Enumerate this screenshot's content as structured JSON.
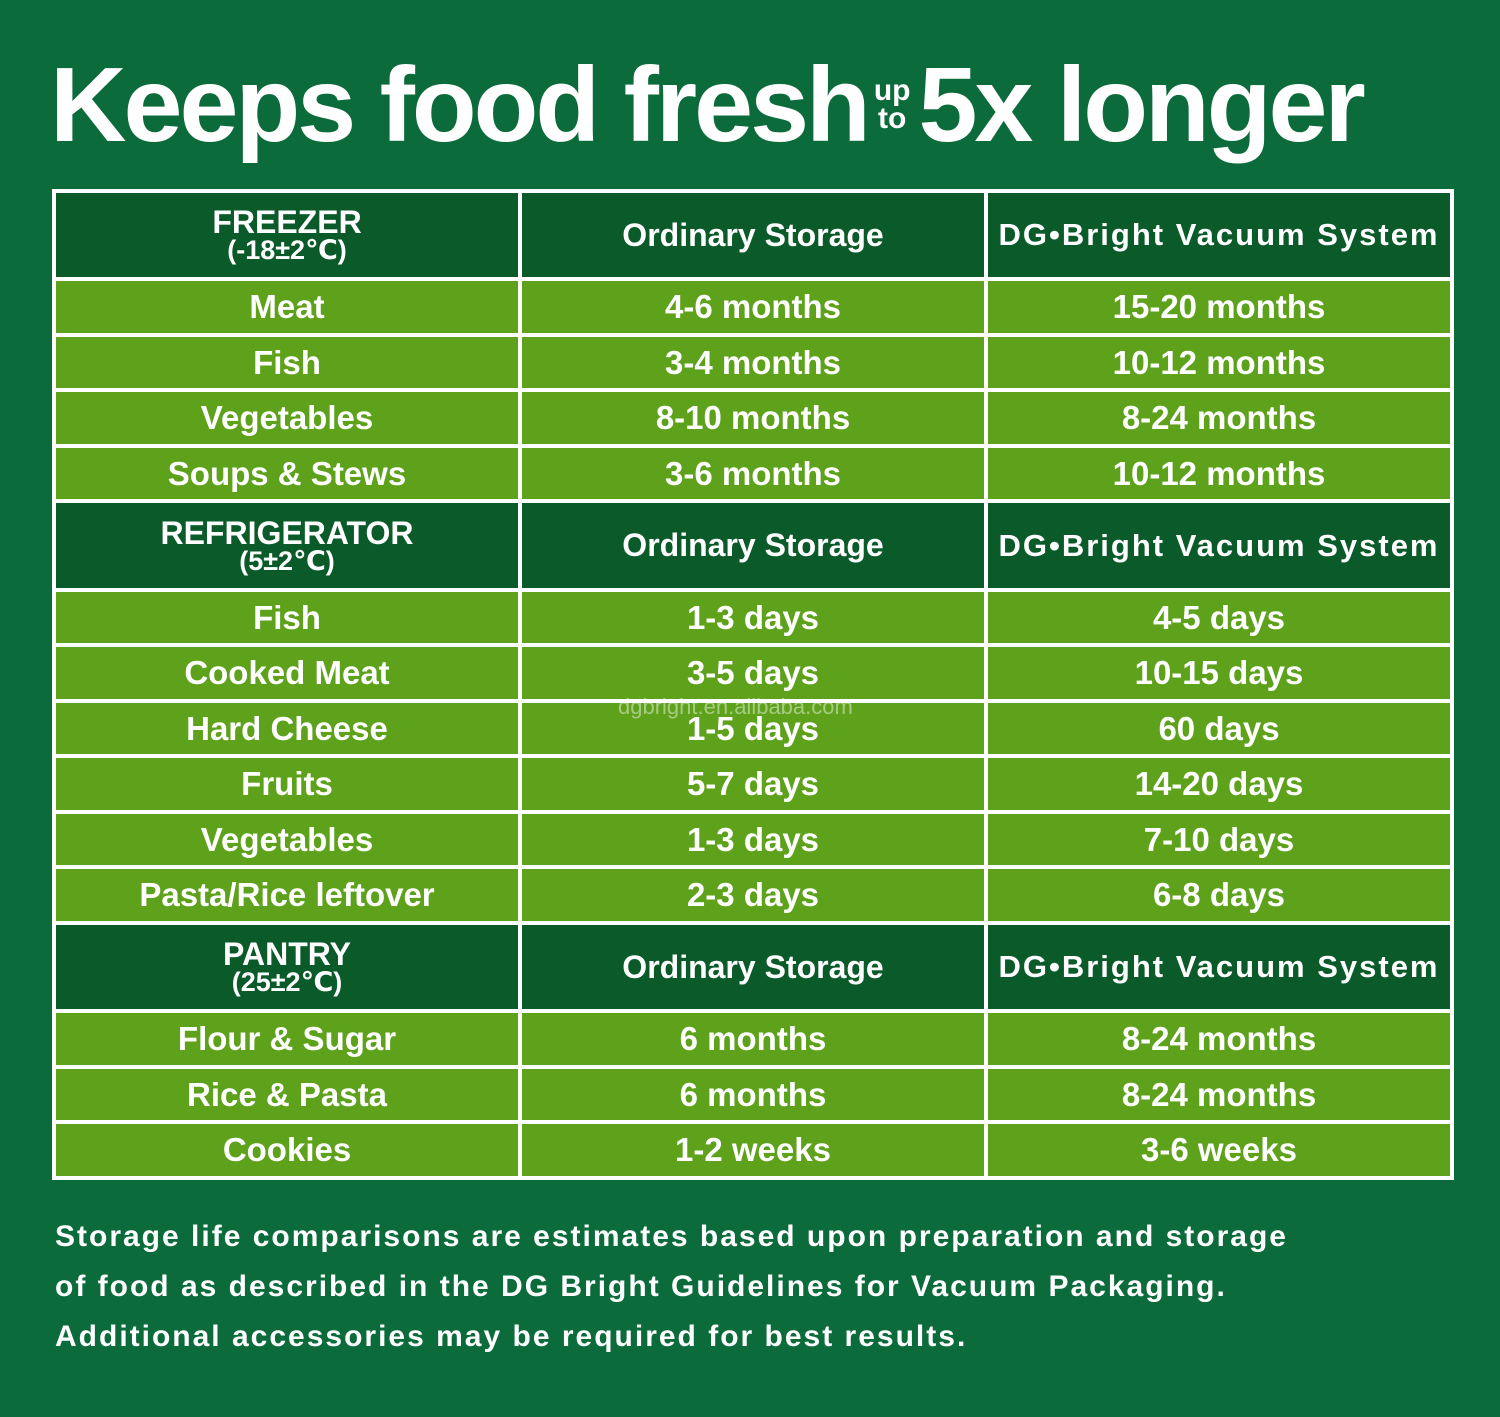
{
  "headline": {
    "main": "Keeps food fresh",
    "up": "up",
    "to": "to",
    "emphasis": "5x longer"
  },
  "columns": {
    "ordinary": "Ordinary Storage",
    "vacuum": "DG•Bright Vacuum System"
  },
  "sections": [
    {
      "name": "FREEZER",
      "temp": "(-18±2℃)",
      "rows": [
        {
          "food": "Meat",
          "ordinary": "4-6 months",
          "vacuum": "15-20 months"
        },
        {
          "food": "Fish",
          "ordinary": "3-4 months",
          "vacuum": "10-12 months"
        },
        {
          "food": "Vegetables",
          "ordinary": "8-10 months",
          "vacuum": "8-24 months"
        },
        {
          "food": "Soups & Stews",
          "ordinary": "3-6 months",
          "vacuum": "10-12 months"
        }
      ]
    },
    {
      "name": "REFRIGERATOR",
      "temp": "(5±2℃)",
      "rows": [
        {
          "food": "Fish",
          "ordinary": "1-3 days",
          "vacuum": "4-5 days"
        },
        {
          "food": "Cooked Meat",
          "ordinary": "3-5 days",
          "vacuum": "10-15 days"
        },
        {
          "food": "Hard Cheese",
          "ordinary": "1-5 days",
          "vacuum": "60 days"
        },
        {
          "food": "Fruits",
          "ordinary": "5-7 days",
          "vacuum": "14-20 days"
        },
        {
          "food": "Vegetables",
          "ordinary": "1-3 days",
          "vacuum": "7-10 days"
        },
        {
          "food": "Pasta/Rice leftover",
          "ordinary": "2-3 days",
          "vacuum": "6-8 days"
        }
      ]
    },
    {
      "name": "PANTRY",
      "temp": "(25±2℃)",
      "rows": [
        {
          "food": "Flour & Sugar",
          "ordinary": "6 months",
          "vacuum": "8-24 months"
        },
        {
          "food": "Rice & Pasta",
          "ordinary": "6 months",
          "vacuum": "8-24 months"
        },
        {
          "food": "Cookies",
          "ordinary": "1-2 weeks",
          "vacuum": "3-6 weeks"
        }
      ]
    }
  ],
  "watermark": "dgbright.en.alibaba.com",
  "footnote": {
    "line1": "Storage life comparisons are estimates based upon preparation and storage",
    "line2": "of food as described in the DG Bright Guidelines for Vacuum Packaging.",
    "line3": "Additional accessories may be required for best results."
  }
}
